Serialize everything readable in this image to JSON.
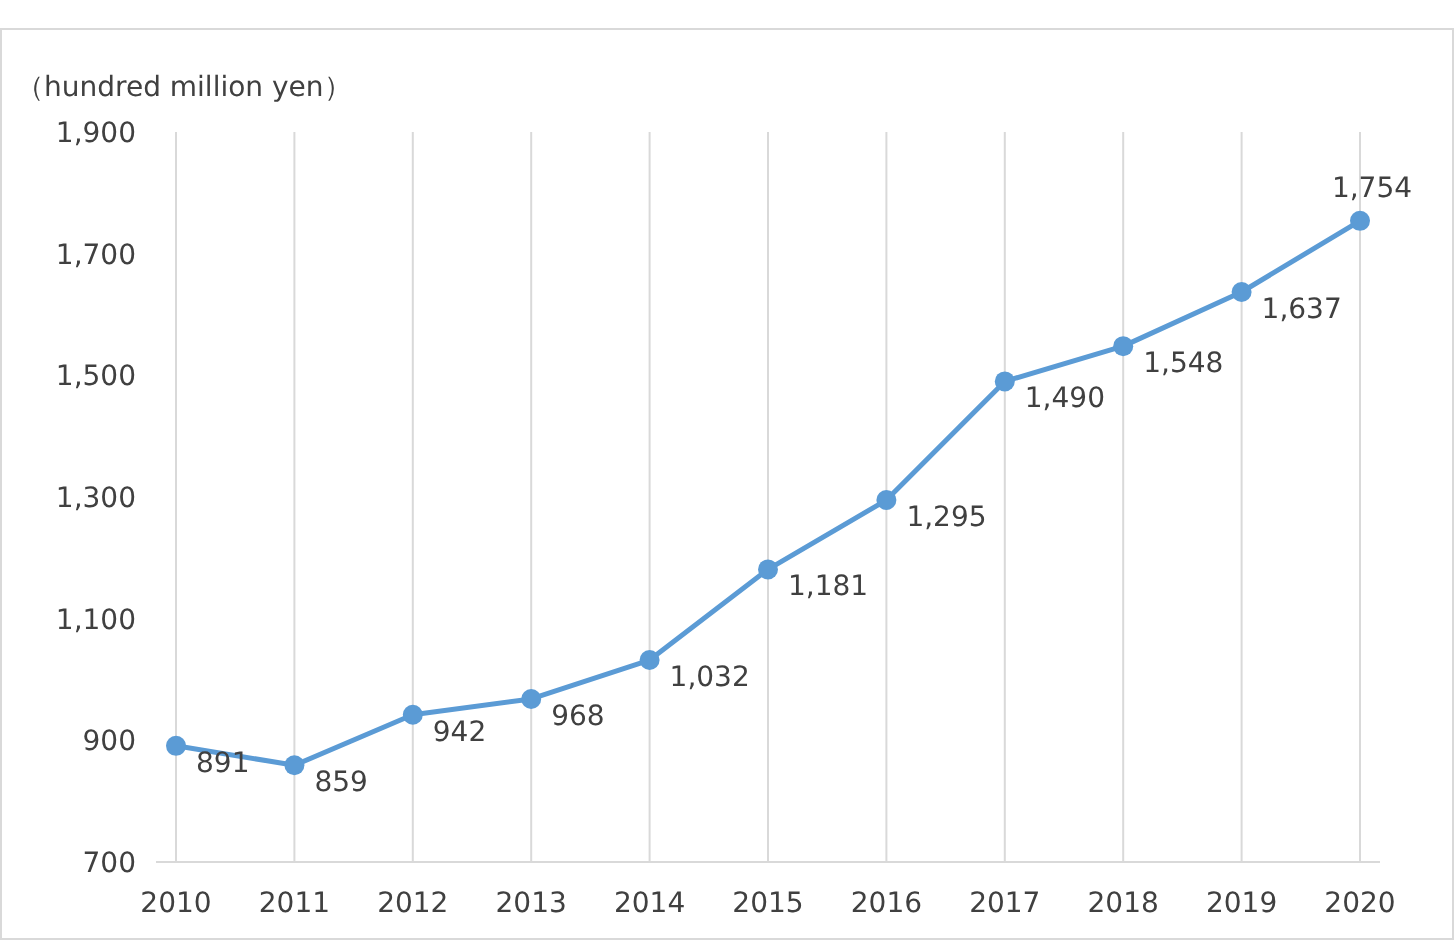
{
  "chart_data": {
    "type": "line",
    "ylabel": "（hundred million yen）",
    "categories": [
      "2010",
      "2011",
      "2012",
      "2013",
      "2014",
      "2015",
      "2016",
      "2017",
      "2018",
      "2019",
      "2020"
    ],
    "values": [
      891,
      859,
      942,
      968,
      1032,
      1181,
      1295,
      1490,
      1548,
      1637,
      1754
    ],
    "value_labels": [
      "891",
      "859",
      "942",
      "968",
      "1,032",
      "1,181",
      "1,295",
      "1,490",
      "1,548",
      "1,637",
      "1,754"
    ],
    "color": "#5b9bd5",
    "marker": "circle",
    "grid": "x",
    "ylim": [
      700,
      1900
    ],
    "yticks": [
      {
        "value": 700,
        "label": "700"
      },
      {
        "value": 900,
        "label": "900"
      },
      {
        "value": 1100,
        "label": "1,100"
      },
      {
        "value": 1300,
        "label": "1,300"
      },
      {
        "value": 1500,
        "label": "1,500"
      },
      {
        "value": 1700,
        "label": "1,700"
      },
      {
        "value": 1900,
        "label": "1,900"
      }
    ]
  }
}
